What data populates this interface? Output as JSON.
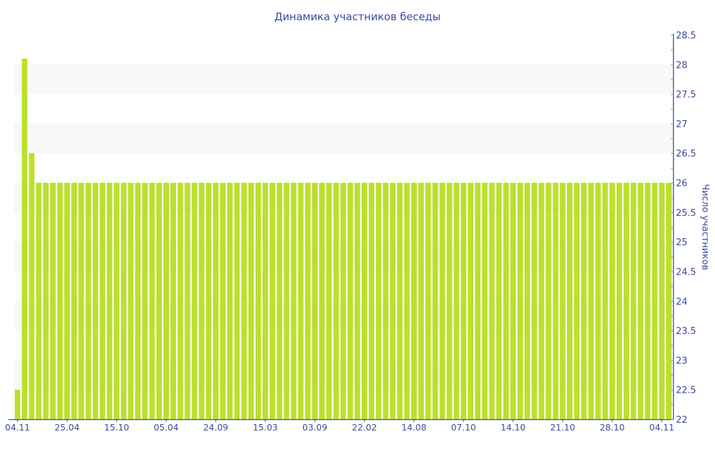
{
  "chart_data": {
    "type": "bar",
    "title": "Динамика участников беседы",
    "ylabel": "Число участников",
    "xlabel": "",
    "ylim": [
      22,
      28.5
    ],
    "y_ticks": [
      "22",
      "22.5",
      "23",
      "23.5",
      "24",
      "24.5",
      "25",
      "25.5",
      "26",
      "26.5",
      "27",
      "27.5",
      "28",
      "28.5"
    ],
    "y_axis_side": "right",
    "x_tick_labels": [
      "04.11",
      "25.04",
      "15.10",
      "05.04",
      "24.09",
      "15.03",
      "03.09",
      "22.02",
      "14.08",
      "07.10",
      "14.10",
      "21.10",
      "28.10",
      "04.11"
    ],
    "x_tick_every_bars": 7,
    "values": [
      22.5,
      28.1,
      26.5,
      26,
      26,
      26,
      26,
      26,
      26,
      26,
      26,
      26,
      26,
      26,
      26,
      26,
      26,
      26,
      26,
      26,
      26,
      26,
      26,
      26,
      26,
      26,
      26,
      26,
      26,
      26,
      26,
      26,
      26,
      26,
      26,
      26,
      26,
      26,
      26,
      26,
      26,
      26,
      26,
      26,
      26,
      26,
      26,
      26,
      26,
      26,
      26,
      26,
      26,
      26,
      26,
      26,
      26,
      26,
      26,
      26,
      26,
      26,
      26,
      26,
      26,
      26,
      26,
      26,
      26,
      26,
      26,
      26,
      26,
      26,
      26,
      26,
      26,
      26,
      26,
      26,
      26,
      26,
      26,
      26,
      26,
      26,
      26,
      26,
      26,
      26,
      26,
      26,
      26
    ],
    "grid": "alternating horizontal bands",
    "legend": "none",
    "colors": {
      "bar": "#bce02d",
      "axis": "#3a4a9a",
      "band": "#f8f8f8"
    }
  }
}
